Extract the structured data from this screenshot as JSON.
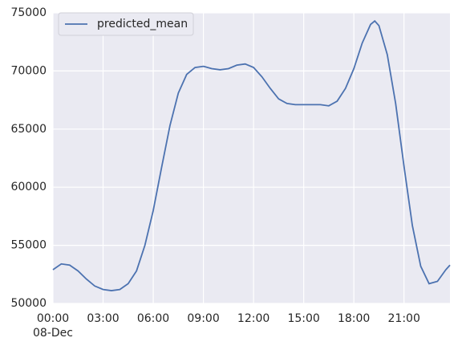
{
  "chart_data": {
    "type": "line",
    "x": [
      "00:00",
      "00:30",
      "01:00",
      "01:30",
      "02:00",
      "02:30",
      "03:00",
      "03:30",
      "04:00",
      "04:30",
      "05:00",
      "05:30",
      "06:00",
      "06:30",
      "07:00",
      "07:30",
      "08:00",
      "08:30",
      "09:00",
      "09:30",
      "10:00",
      "10:30",
      "11:00",
      "11:30",
      "12:00",
      "12:30",
      "13:00",
      "13:30",
      "14:00",
      "14:30",
      "15:00",
      "15:30",
      "16:00",
      "16:30",
      "17:00",
      "17:30",
      "18:00",
      "18:30",
      "19:00",
      "19:15",
      "19:30",
      "20:00",
      "20:30",
      "21:00",
      "21:30",
      "22:00",
      "22:30",
      "23:00",
      "23:30",
      "23:45"
    ],
    "series": [
      {
        "name": "predicted_mean",
        "color": "#4c72b0",
        "values": [
          52900,
          53400,
          53300,
          52800,
          52100,
          51500,
          51200,
          51100,
          51200,
          51700,
          52800,
          55000,
          58000,
          61700,
          65300,
          68100,
          69700,
          70300,
          70400,
          70200,
          70100,
          70200,
          70500,
          70600,
          70300,
          69500,
          68500,
          67600,
          67200,
          67100,
          67100,
          67100,
          67100,
          67000,
          67400,
          68500,
          70200,
          72400,
          74000,
          74300,
          73900,
          71400,
          67200,
          61800,
          56700,
          53200,
          51700,
          51900,
          52900,
          53300
        ]
      }
    ],
    "xlim": [
      "00:00",
      "23:45"
    ],
    "xticks": [
      "00:00",
      "03:00",
      "06:00",
      "09:00",
      "12:00",
      "15:00",
      "18:00",
      "21:00"
    ],
    "date_label": "08-Dec",
    "ylim": [
      50000,
      75000
    ],
    "yticks": [
      50000,
      55000,
      60000,
      65000,
      70000,
      75000
    ],
    "grid": true,
    "legend": "upper left"
  }
}
